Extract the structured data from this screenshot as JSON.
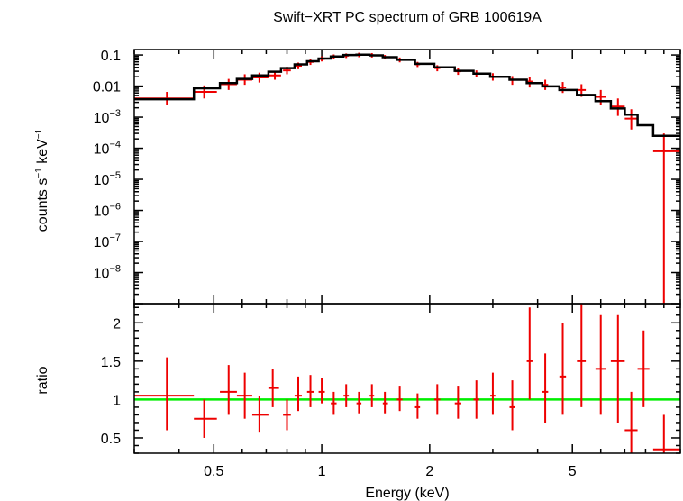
{
  "chart_data": {
    "type": "scatter",
    "title": "Swift−XRT PC spectrum of GRB 100619A",
    "xlabel": "Energy (keV)",
    "x_scale": "log",
    "xlim": [
      0.3,
      10
    ],
    "x_ticks": [
      {
        "value": 0.5,
        "label": "0.5"
      },
      {
        "value": 1,
        "label": "1"
      },
      {
        "value": 2,
        "label": "2"
      },
      {
        "value": 5,
        "label": "5"
      }
    ],
    "panels": [
      {
        "name": "spectrum",
        "ylabel_main": "counts s",
        "ylabel_exp1": "−1",
        "ylabel_mid": " keV",
        "ylabel_exp2": "−1",
        "y_scale": "log",
        "ylim": [
          1e-09,
          0.15
        ],
        "y_ticks": [
          {
            "value": 0.1,
            "base": "0.1",
            "exp": ""
          },
          {
            "value": 0.01,
            "base": "0.01",
            "exp": ""
          },
          {
            "value": 0.001,
            "base": "10",
            "exp": "−3"
          },
          {
            "value": 0.0001,
            "base": "10",
            "exp": "−4"
          },
          {
            "value": 1e-05,
            "base": "10",
            "exp": "−5"
          },
          {
            "value": 1e-06,
            "base": "10",
            "exp": "−6"
          },
          {
            "value": 1e-07,
            "base": "10",
            "exp": "−7"
          },
          {
            "value": 1e-08,
            "base": "10",
            "exp": "−8"
          }
        ],
        "series": [
          {
            "kind": "data",
            "color": "#ee0000",
            "points": [
              {
                "x": 0.37,
                "xlo": 0.3,
                "xhi": 0.44,
                "y": 0.004,
                "ylo": 0.0025,
                "yhi": 0.0065
              },
              {
                "x": 0.47,
                "xlo": 0.44,
                "xhi": 0.51,
                "y": 0.0065,
                "ylo": 0.004,
                "yhi": 0.0105
              },
              {
                "x": 0.55,
                "xlo": 0.52,
                "xhi": 0.58,
                "y": 0.0115,
                "ylo": 0.0075,
                "yhi": 0.017
              },
              {
                "x": 0.61,
                "xlo": 0.58,
                "xhi": 0.64,
                "y": 0.016,
                "ylo": 0.011,
                "yhi": 0.024
              },
              {
                "x": 0.67,
                "xlo": 0.64,
                "xhi": 0.71,
                "y": 0.019,
                "ylo": 0.013,
                "yhi": 0.027
              },
              {
                "x": 0.74,
                "xlo": 0.71,
                "xhi": 0.77,
                "y": 0.022,
                "ylo": 0.016,
                "yhi": 0.03
              },
              {
                "x": 0.8,
                "xlo": 0.78,
                "xhi": 0.82,
                "y": 0.032,
                "ylo": 0.024,
                "yhi": 0.042
              },
              {
                "x": 0.86,
                "xlo": 0.84,
                "xhi": 0.88,
                "y": 0.045,
                "ylo": 0.035,
                "yhi": 0.057
              },
              {
                "x": 0.93,
                "xlo": 0.91,
                "xhi": 0.95,
                "y": 0.06,
                "ylo": 0.048,
                "yhi": 0.074
              },
              {
                "x": 1.0,
                "xlo": 0.98,
                "xhi": 1.02,
                "y": 0.075,
                "ylo": 0.062,
                "yhi": 0.09
              },
              {
                "x": 1.08,
                "xlo": 1.06,
                "xhi": 1.1,
                "y": 0.088,
                "ylo": 0.074,
                "yhi": 0.104
              },
              {
                "x": 1.17,
                "xlo": 1.15,
                "xhi": 1.19,
                "y": 0.095,
                "ylo": 0.08,
                "yhi": 0.112
              },
              {
                "x": 1.27,
                "xlo": 1.25,
                "xhi": 1.29,
                "y": 0.1,
                "ylo": 0.085,
                "yhi": 0.118
              },
              {
                "x": 1.38,
                "xlo": 1.36,
                "xhi": 1.4,
                "y": 0.098,
                "ylo": 0.083,
                "yhi": 0.115
              },
              {
                "x": 1.5,
                "xlo": 1.48,
                "xhi": 1.53,
                "y": 0.085,
                "ylo": 0.072,
                "yhi": 0.1
              },
              {
                "x": 1.65,
                "xlo": 1.62,
                "xhi": 1.68,
                "y": 0.07,
                "ylo": 0.058,
                "yhi": 0.083
              },
              {
                "x": 1.85,
                "xlo": 1.82,
                "xhi": 1.88,
                "y": 0.05,
                "ylo": 0.041,
                "yhi": 0.06
              },
              {
                "x": 2.1,
                "xlo": 2.06,
                "xhi": 2.14,
                "y": 0.038,
                "ylo": 0.03,
                "yhi": 0.047
              },
              {
                "x": 2.4,
                "xlo": 2.35,
                "xhi": 2.45,
                "y": 0.03,
                "ylo": 0.023,
                "yhi": 0.038
              },
              {
                "x": 2.7,
                "xlo": 2.65,
                "xhi": 2.75,
                "y": 0.025,
                "ylo": 0.019,
                "yhi": 0.032
              },
              {
                "x": 3.0,
                "xlo": 2.95,
                "xhi": 3.05,
                "y": 0.02,
                "ylo": 0.015,
                "yhi": 0.026
              },
              {
                "x": 3.4,
                "xlo": 3.34,
                "xhi": 3.46,
                "y": 0.016,
                "ylo": 0.011,
                "yhi": 0.021
              },
              {
                "x": 3.8,
                "xlo": 3.73,
                "xhi": 3.87,
                "y": 0.014,
                "ylo": 0.009,
                "yhi": 0.019
              },
              {
                "x": 4.2,
                "xlo": 4.12,
                "xhi": 4.28,
                "y": 0.011,
                "ylo": 0.0075,
                "yhi": 0.016
              },
              {
                "x": 4.7,
                "xlo": 4.6,
                "xhi": 4.8,
                "y": 0.009,
                "ylo": 0.006,
                "yhi": 0.0135
              },
              {
                "x": 5.3,
                "xlo": 5.15,
                "xhi": 5.45,
                "y": 0.0075,
                "ylo": 0.0045,
                "yhi": 0.0115
              },
              {
                "x": 6.0,
                "xlo": 5.8,
                "xhi": 6.2,
                "y": 0.0045,
                "ylo": 0.0025,
                "yhi": 0.0075
              },
              {
                "x": 6.7,
                "xlo": 6.4,
                "xhi": 7.0,
                "y": 0.0022,
                "ylo": 0.0011,
                "yhi": 0.004
              },
              {
                "x": 7.3,
                "xlo": 7.0,
                "xhi": 7.6,
                "y": 0.0009,
                "ylo": 0.0004,
                "yhi": 0.0018
              },
              {
                "x": 9.0,
                "xlo": 8.4,
                "xhi": 10.0,
                "y": 8e-05,
                "ylo": 1e-09,
                "yhi": 0.0003
              }
            ]
          },
          {
            "kind": "model",
            "color": "#000000",
            "steps": [
              {
                "xlo": 0.3,
                "xhi": 0.44,
                "y": 0.0038
              },
              {
                "xlo": 0.44,
                "xhi": 0.52,
                "y": 0.0085
              },
              {
                "xlo": 0.52,
                "xhi": 0.58,
                "y": 0.0125
              },
              {
                "xlo": 0.58,
                "xhi": 0.64,
                "y": 0.017
              },
              {
                "xlo": 0.64,
                "xhi": 0.71,
                "y": 0.022
              },
              {
                "xlo": 0.71,
                "xhi": 0.77,
                "y": 0.029
              },
              {
                "xlo": 0.77,
                "xhi": 0.84,
                "y": 0.038
              },
              {
                "xlo": 0.84,
                "xhi": 0.91,
                "y": 0.05
              },
              {
                "xlo": 0.91,
                "xhi": 0.98,
                "y": 0.063
              },
              {
                "xlo": 0.98,
                "xhi": 1.06,
                "y": 0.077
              },
              {
                "xlo": 1.06,
                "xhi": 1.15,
                "y": 0.09
              },
              {
                "xlo": 1.15,
                "xhi": 1.25,
                "y": 0.1
              },
              {
                "xlo": 1.25,
                "xhi": 1.36,
                "y": 0.102
              },
              {
                "xlo": 1.36,
                "xhi": 1.48,
                "y": 0.097
              },
              {
                "xlo": 1.48,
                "xhi": 1.62,
                "y": 0.085
              },
              {
                "xlo": 1.62,
                "xhi": 1.82,
                "y": 0.07
              },
              {
                "xlo": 1.82,
                "xhi": 2.06,
                "y": 0.052
              },
              {
                "xlo": 2.06,
                "xhi": 2.35,
                "y": 0.04
              },
              {
                "xlo": 2.35,
                "xhi": 2.65,
                "y": 0.031
              },
              {
                "xlo": 2.65,
                "xhi": 2.95,
                "y": 0.025
              },
              {
                "xlo": 2.95,
                "xhi": 3.34,
                "y": 0.02
              },
              {
                "xlo": 3.34,
                "xhi": 3.73,
                "y": 0.016
              },
              {
                "xlo": 3.73,
                "xhi": 4.12,
                "y": 0.0125
              },
              {
                "xlo": 4.12,
                "xhi": 4.6,
                "y": 0.0098
              },
              {
                "xlo": 4.6,
                "xhi": 5.15,
                "y": 0.0075
              },
              {
                "xlo": 5.15,
                "xhi": 5.8,
                "y": 0.0052
              },
              {
                "xlo": 5.8,
                "xhi": 6.4,
                "y": 0.0033
              },
              {
                "xlo": 6.4,
                "xhi": 7.0,
                "y": 0.0019
              },
              {
                "xlo": 7.0,
                "xhi": 7.6,
                "y": 0.0012
              },
              {
                "xlo": 7.6,
                "xhi": 8.4,
                "y": 0.00055
              },
              {
                "xlo": 8.4,
                "xhi": 10.0,
                "y": 0.00025
              }
            ]
          }
        ]
      },
      {
        "name": "ratio",
        "ylabel": "ratio",
        "y_scale": "linear",
        "ylim": [
          0.3,
          2.25
        ],
        "y_ticks": [
          {
            "value": 0.5,
            "label": "0.5"
          },
          {
            "value": 1,
            "label": "1"
          },
          {
            "value": 1.5,
            "label": "1.5"
          },
          {
            "value": 2,
            "label": "2"
          }
        ],
        "reference_line": {
          "y": 1,
          "color": "#00ee00"
        },
        "series": [
          {
            "kind": "data",
            "color": "#ee0000",
            "points": [
              {
                "x": 0.37,
                "xlo": 0.3,
                "xhi": 0.44,
                "y": 1.05,
                "ylo": 0.6,
                "yhi": 1.55
              },
              {
                "x": 0.47,
                "xlo": 0.44,
                "xhi": 0.51,
                "y": 0.75,
                "ylo": 0.5,
                "yhi": 1.0
              },
              {
                "x": 0.55,
                "xlo": 0.52,
                "xhi": 0.58,
                "y": 1.1,
                "ylo": 0.8,
                "yhi": 1.45
              },
              {
                "x": 0.61,
                "xlo": 0.58,
                "xhi": 0.64,
                "y": 1.05,
                "ylo": 0.75,
                "yhi": 1.35
              },
              {
                "x": 0.67,
                "xlo": 0.64,
                "xhi": 0.71,
                "y": 0.8,
                "ylo": 0.58,
                "yhi": 1.05
              },
              {
                "x": 0.73,
                "xlo": 0.71,
                "xhi": 0.76,
                "y": 1.15,
                "ylo": 0.9,
                "yhi": 1.4
              },
              {
                "x": 0.8,
                "xlo": 0.78,
                "xhi": 0.82,
                "y": 0.8,
                "ylo": 0.6,
                "yhi": 1.0
              },
              {
                "x": 0.86,
                "xlo": 0.84,
                "xhi": 0.88,
                "y": 1.05,
                "ylo": 0.85,
                "yhi": 1.3
              },
              {
                "x": 0.93,
                "xlo": 0.91,
                "xhi": 0.95,
                "y": 1.1,
                "ylo": 0.9,
                "yhi": 1.32
              },
              {
                "x": 1.0,
                "xlo": 0.98,
                "xhi": 1.02,
                "y": 1.1,
                "ylo": 0.95,
                "yhi": 1.28
              },
              {
                "x": 1.08,
                "xlo": 1.06,
                "xhi": 1.1,
                "y": 0.95,
                "ylo": 0.8,
                "yhi": 1.1
              },
              {
                "x": 1.17,
                "xlo": 1.15,
                "xhi": 1.19,
                "y": 1.05,
                "ylo": 0.9,
                "yhi": 1.2
              },
              {
                "x": 1.27,
                "xlo": 1.25,
                "xhi": 1.29,
                "y": 0.95,
                "ylo": 0.82,
                "yhi": 1.1
              },
              {
                "x": 1.38,
                "xlo": 1.36,
                "xhi": 1.4,
                "y": 1.05,
                "ylo": 0.9,
                "yhi": 1.2
              },
              {
                "x": 1.5,
                "xlo": 1.48,
                "xhi": 1.53,
                "y": 0.95,
                "ylo": 0.82,
                "yhi": 1.1
              },
              {
                "x": 1.65,
                "xlo": 1.62,
                "xhi": 1.68,
                "y": 1.0,
                "ylo": 0.85,
                "yhi": 1.18
              },
              {
                "x": 1.85,
                "xlo": 1.82,
                "xhi": 1.88,
                "y": 0.9,
                "ylo": 0.75,
                "yhi": 1.08
              },
              {
                "x": 2.1,
                "xlo": 2.06,
                "xhi": 2.14,
                "y": 1.0,
                "ylo": 0.8,
                "yhi": 1.2
              },
              {
                "x": 2.4,
                "xlo": 2.35,
                "xhi": 2.45,
                "y": 0.95,
                "ylo": 0.75,
                "yhi": 1.18
              },
              {
                "x": 2.7,
                "xlo": 2.65,
                "xhi": 2.75,
                "y": 1.0,
                "ylo": 0.75,
                "yhi": 1.25
              },
              {
                "x": 3.0,
                "xlo": 2.95,
                "xhi": 3.05,
                "y": 1.05,
                "ylo": 0.8,
                "yhi": 1.35
              },
              {
                "x": 3.4,
                "xlo": 3.34,
                "xhi": 3.46,
                "y": 0.9,
                "ylo": 0.6,
                "yhi": 1.25
              },
              {
                "x": 3.8,
                "xlo": 3.73,
                "xhi": 3.87,
                "y": 1.5,
                "ylo": 1.0,
                "yhi": 2.2
              },
              {
                "x": 4.2,
                "xlo": 4.12,
                "xhi": 4.28,
                "y": 1.1,
                "ylo": 0.7,
                "yhi": 1.6
              },
              {
                "x": 4.7,
                "xlo": 4.6,
                "xhi": 4.8,
                "y": 1.3,
                "ylo": 0.8,
                "yhi": 2.0
              },
              {
                "x": 5.3,
                "xlo": 5.15,
                "xhi": 5.45,
                "y": 1.5,
                "ylo": 0.9,
                "yhi": 2.25
              },
              {
                "x": 6.0,
                "xlo": 5.8,
                "xhi": 6.2,
                "y": 1.4,
                "ylo": 0.8,
                "yhi": 2.1
              },
              {
                "x": 6.7,
                "xlo": 6.4,
                "xhi": 7.0,
                "y": 1.5,
                "ylo": 0.7,
                "yhi": 2.1
              },
              {
                "x": 7.3,
                "xlo": 7.0,
                "xhi": 7.6,
                "y": 0.6,
                "ylo": 0.3,
                "yhi": 1.1
              },
              {
                "x": 7.9,
                "xlo": 7.6,
                "xhi": 8.2,
                "y": 1.4,
                "ylo": 0.9,
                "yhi": 1.9
              },
              {
                "x": 9.0,
                "xlo": 8.4,
                "xhi": 10.0,
                "y": 0.35,
                "ylo": 0.3,
                "yhi": 0.8
              }
            ]
          }
        ]
      }
    ]
  }
}
